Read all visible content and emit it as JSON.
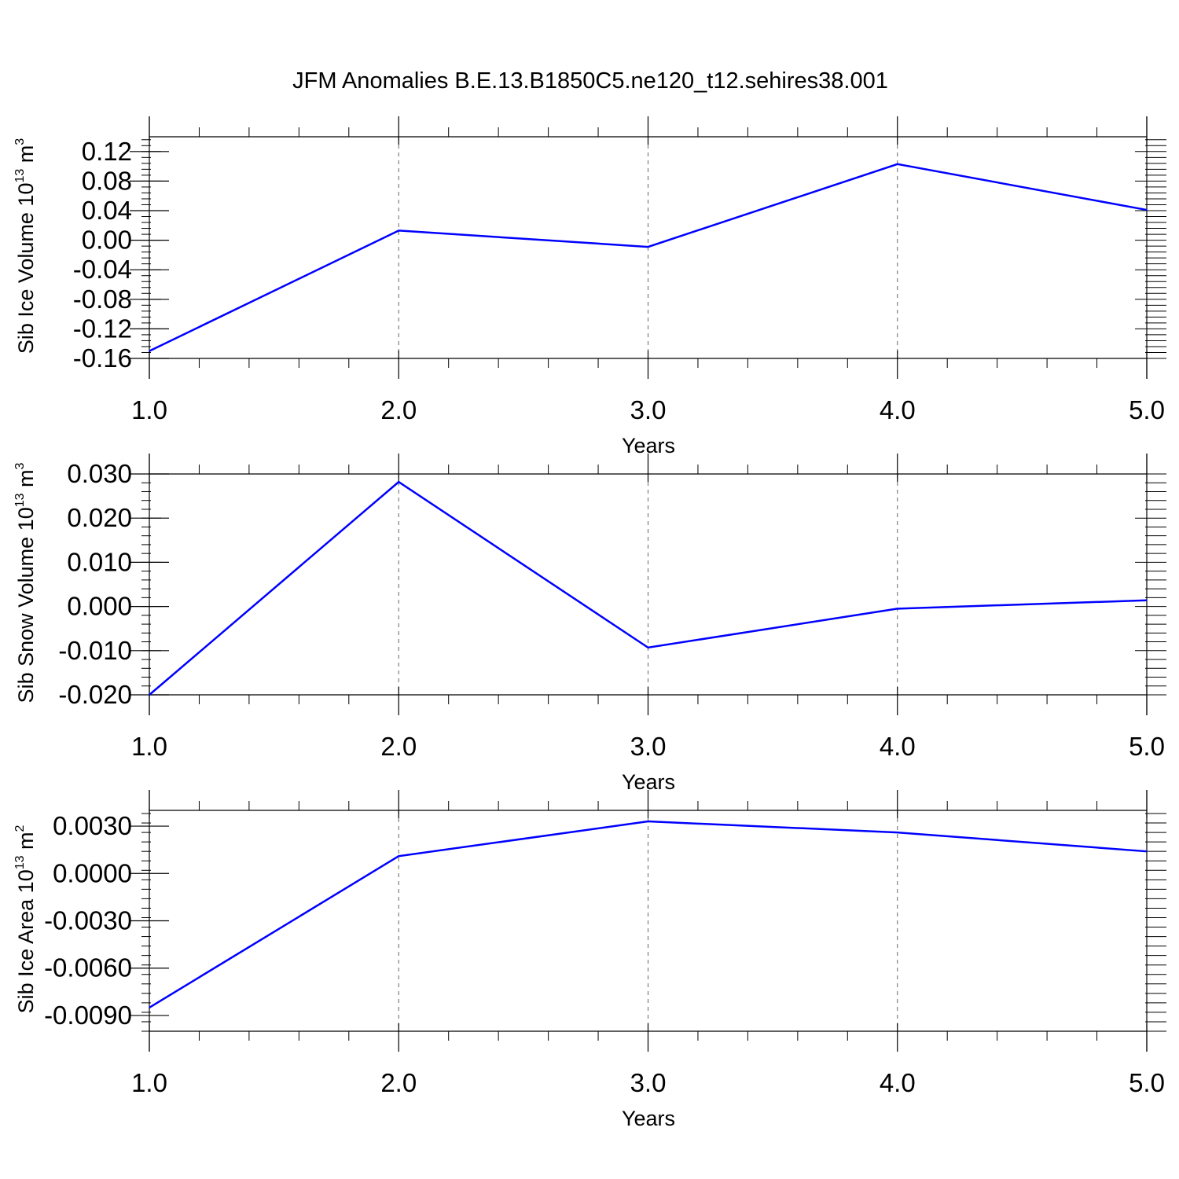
{
  "title": "JFM Anomalies B.E.13.B1850C5.ne120_t12.sehires38.001",
  "chart_data": [
    {
      "type": "line",
      "title": "",
      "xlabel": "Years",
      "ylabel_main": "Sib Ice Volume 10",
      "ylabel_exp": "13",
      "ylabel_unit": " m",
      "ylabel_unit_exp": "3",
      "xlim": [
        1.0,
        5.0
      ],
      "ylim": [
        -0.16,
        0.14
      ],
      "x_ticks": [
        1.0,
        2.0,
        3.0,
        4.0,
        5.0
      ],
      "x_tick_labels": [
        "1.0",
        "2.0",
        "3.0",
        "4.0",
        "5.0"
      ],
      "y_ticks": [
        -0.16,
        -0.12,
        -0.08,
        -0.04,
        0.0,
        0.04,
        0.08,
        0.12
      ],
      "y_tick_labels": [
        "-0.16",
        "-0.12",
        "-0.08",
        "-0.04",
        "0.00",
        "0.04",
        "0.08",
        "0.12"
      ],
      "grid": "vertical dashed",
      "series": [
        {
          "x": [
            1.0,
            2.0,
            3.0,
            4.0,
            5.0
          ],
          "values": [
            -0.15,
            0.013,
            -0.009,
            0.103,
            0.041
          ],
          "color": "#0000ff"
        }
      ]
    },
    {
      "type": "line",
      "title": "",
      "xlabel": "Years",
      "ylabel_main": "Sib Snow Volume 10",
      "ylabel_exp": "13",
      "ylabel_unit": " m",
      "ylabel_unit_exp": "3",
      "xlim": [
        1.0,
        5.0
      ],
      "ylim": [
        -0.02,
        0.03
      ],
      "x_ticks": [
        1.0,
        2.0,
        3.0,
        4.0,
        5.0
      ],
      "x_tick_labels": [
        "1.0",
        "2.0",
        "3.0",
        "4.0",
        "5.0"
      ],
      "y_ticks": [
        -0.02,
        -0.01,
        0.0,
        0.01,
        0.02,
        0.03
      ],
      "y_tick_labels": [
        "-0.020",
        "-0.010",
        "0.000",
        "0.010",
        "0.020",
        "0.030"
      ],
      "grid": "vertical dashed",
      "series": [
        {
          "x": [
            1.0,
            2.0,
            3.0,
            4.0,
            5.0
          ],
          "values": [
            -0.02,
            0.0282,
            -0.0093,
            -0.0005,
            0.0014
          ],
          "color": "#0000ff"
        }
      ]
    },
    {
      "type": "line",
      "title": "",
      "xlabel": "Years",
      "ylabel_main": "Sib Ice Area 10",
      "ylabel_exp": "13",
      "ylabel_unit": " m",
      "ylabel_unit_exp": "2",
      "xlim": [
        1.0,
        5.0
      ],
      "ylim": [
        -0.01,
        0.004
      ],
      "x_ticks": [
        1.0,
        2.0,
        3.0,
        4.0,
        5.0
      ],
      "x_tick_labels": [
        "1.0",
        "2.0",
        "3.0",
        "4.0",
        "5.0"
      ],
      "y_ticks": [
        -0.009,
        -0.006,
        -0.003,
        0.0,
        0.003
      ],
      "y_tick_labels": [
        "-0.0090",
        "-0.0060",
        "-0.0030",
        "0.0000",
        "0.0030"
      ],
      "grid": "vertical dashed",
      "series": [
        {
          "x": [
            1.0,
            2.0,
            3.0,
            4.0,
            5.0
          ],
          "values": [
            -0.0085,
            0.0011,
            0.0033,
            0.0026,
            0.0014
          ],
          "color": "#0000ff"
        }
      ]
    }
  ]
}
